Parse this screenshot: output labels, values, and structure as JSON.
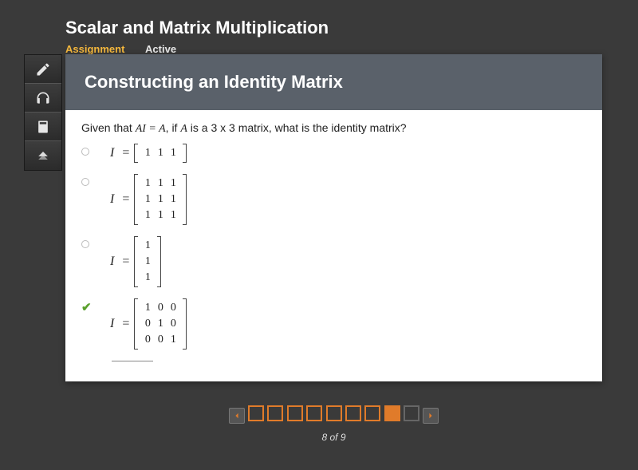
{
  "header": {
    "course_title": "Scalar and Matrix Multiplication",
    "tab_assignment": "Assignment",
    "tab_active": "Active"
  },
  "section": {
    "title": "Constructing an Identity Matrix"
  },
  "question": {
    "prompt_prefix": "Given that ",
    "prompt_eq": "AI = A",
    "prompt_mid": ", if ",
    "prompt_A": "A",
    "prompt_suffix": " is a 3 x 3 matrix, what is the identity matrix?",
    "var": "I",
    "eq": "="
  },
  "options": [
    {
      "state": "unselected",
      "rows": 1,
      "cols": 3,
      "cells": [
        "1",
        "1",
        "1"
      ]
    },
    {
      "state": "unselected",
      "rows": 3,
      "cols": 3,
      "cells": [
        "1",
        "1",
        "1",
        "1",
        "1",
        "1",
        "1",
        "1",
        "1"
      ]
    },
    {
      "state": "unselected",
      "rows": 3,
      "cols": 1,
      "cells": [
        "1",
        "1",
        "1"
      ]
    },
    {
      "state": "correct",
      "rows": 3,
      "cols": 3,
      "cells": [
        "1",
        "0",
        "0",
        "0",
        "1",
        "0",
        "0",
        "0",
        "1"
      ]
    }
  ],
  "toolbar": [
    {
      "name": "pencil-icon"
    },
    {
      "name": "headphones-icon"
    },
    {
      "name": "calculator-icon"
    },
    {
      "name": "collapse-icon"
    }
  ],
  "pager": {
    "total": 9,
    "current": 8,
    "label": "8 of 9"
  },
  "colors": {
    "accent": "#e07b2a",
    "tab_accent": "#f5b83d",
    "correct": "#5aa02c",
    "page_bg": "#3a3a3a",
    "panel_bg": "#ffffff",
    "section_header_bg": "#5a616a"
  }
}
